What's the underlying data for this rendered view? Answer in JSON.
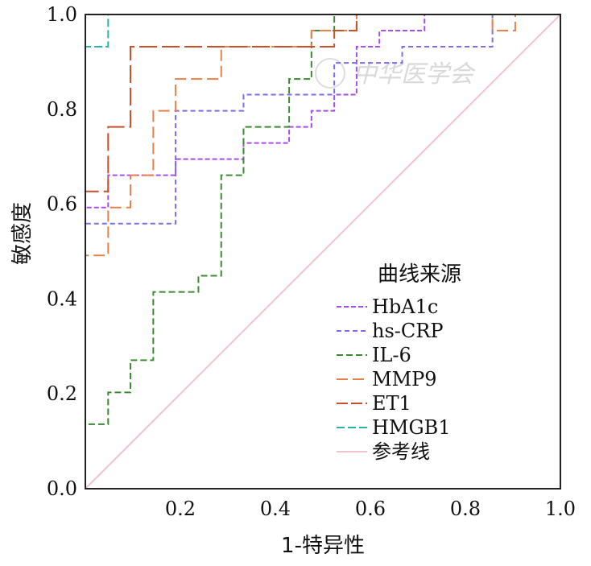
{
  "chart_data": {
    "type": "line",
    "title": "",
    "xlabel": "1-特异性",
    "ylabel": "敏感度",
    "xlim": [
      0,
      1
    ],
    "ylim": [
      0,
      1
    ],
    "xticks": [
      "0.2",
      "0.4",
      "0.6",
      "0.8",
      "1.0"
    ],
    "xtick_values": [
      0.2,
      0.4,
      0.6,
      0.8,
      1.0
    ],
    "yticks": [
      "0.0",
      "0.2",
      "0.4",
      "0.6",
      "0.8",
      "1.0"
    ],
    "ytick_values": [
      0.0,
      0.2,
      0.4,
      0.6,
      0.8,
      1.0
    ],
    "legend_title": "曲线来源",
    "watermark": "中华医学会",
    "series": [
      {
        "name": "HbA1c",
        "color": "#a64ee6",
        "dash": "6,3",
        "points": [
          [
            0,
            0
          ],
          [
            0,
            0.593
          ],
          [
            0.048,
            0.593
          ],
          [
            0.048,
            0.661
          ],
          [
            0.19,
            0.661
          ],
          [
            0.19,
            0.695
          ],
          [
            0.333,
            0.695
          ],
          [
            0.333,
            0.729
          ],
          [
            0.429,
            0.729
          ],
          [
            0.429,
            0.763
          ],
          [
            0.476,
            0.763
          ],
          [
            0.476,
            0.797
          ],
          [
            0.524,
            0.797
          ],
          [
            0.524,
            0.831
          ],
          [
            0.571,
            0.831
          ],
          [
            0.571,
            0.932
          ],
          [
            0.619,
            0.932
          ],
          [
            0.619,
            0.966
          ],
          [
            0.714,
            0.966
          ],
          [
            0.714,
            1.0
          ],
          [
            1.0,
            1.0
          ]
        ]
      },
      {
        "name": "hs-CRP",
        "color": "#7b6ee8",
        "dash": "6,4",
        "points": [
          [
            0,
            0
          ],
          [
            0,
            0.559
          ],
          [
            0.19,
            0.559
          ],
          [
            0.19,
            0.797
          ],
          [
            0.333,
            0.797
          ],
          [
            0.333,
            0.831
          ],
          [
            0.524,
            0.831
          ],
          [
            0.524,
            0.898
          ],
          [
            0.667,
            0.898
          ],
          [
            0.667,
            0.932
          ],
          [
            0.857,
            0.932
          ],
          [
            0.857,
            1.0
          ],
          [
            1.0,
            1.0
          ]
        ]
      },
      {
        "name": "IL-6",
        "color": "#3c8a32",
        "dash": "8,4",
        "points": [
          [
            0,
            0
          ],
          [
            0,
            0.136
          ],
          [
            0.048,
            0.136
          ],
          [
            0.048,
            0.203
          ],
          [
            0.095,
            0.203
          ],
          [
            0.095,
            0.271
          ],
          [
            0.143,
            0.271
          ],
          [
            0.143,
            0.415
          ],
          [
            0.238,
            0.415
          ],
          [
            0.238,
            0.449
          ],
          [
            0.286,
            0.449
          ],
          [
            0.286,
            0.661
          ],
          [
            0.333,
            0.661
          ],
          [
            0.333,
            0.763
          ],
          [
            0.429,
            0.763
          ],
          [
            0.429,
            0.864
          ],
          [
            0.476,
            0.864
          ],
          [
            0.476,
            0.966
          ],
          [
            0.524,
            0.966
          ],
          [
            0.524,
            1.0
          ],
          [
            1.0,
            1.0
          ]
        ]
      },
      {
        "name": "MMP9",
        "color": "#e8824a",
        "dash": "14,6",
        "points": [
          [
            0,
            0
          ],
          [
            0,
            0.492
          ],
          [
            0.048,
            0.492
          ],
          [
            0.048,
            0.593
          ],
          [
            0.095,
            0.593
          ],
          [
            0.095,
            0.661
          ],
          [
            0.143,
            0.661
          ],
          [
            0.143,
            0.797
          ],
          [
            0.19,
            0.797
          ],
          [
            0.19,
            0.864
          ],
          [
            0.286,
            0.864
          ],
          [
            0.286,
            0.932
          ],
          [
            0.476,
            0.932
          ],
          [
            0.476,
            0.966
          ],
          [
            0.571,
            0.966
          ],
          [
            0.571,
            1.0
          ],
          [
            0.857,
            1.0
          ],
          [
            0.857,
            0.966
          ],
          [
            0.905,
            0.966
          ],
          [
            0.905,
            1.0
          ],
          [
            1.0,
            1.0
          ]
        ]
      },
      {
        "name": "ET1",
        "color": "#c8502a",
        "dash": "22,6",
        "points": [
          [
            0,
            0
          ],
          [
            0,
            0.627
          ],
          [
            0.048,
            0.627
          ],
          [
            0.048,
            0.763
          ],
          [
            0.095,
            0.763
          ],
          [
            0.095,
            0.932
          ],
          [
            0.524,
            0.932
          ],
          [
            0.524,
            0.966
          ],
          [
            0.571,
            0.966
          ],
          [
            0.571,
            1.0
          ],
          [
            1.0,
            1.0
          ]
        ]
      },
      {
        "name": "HMGB1",
        "color": "#2bb3a8",
        "dash": "10,4",
        "points": [
          [
            0,
            0
          ],
          [
            0,
            0.932
          ],
          [
            0.048,
            0.932
          ],
          [
            0.048,
            1.0
          ],
          [
            1.0,
            1.0
          ]
        ]
      },
      {
        "name": "参考线",
        "color": "#f4c2cc",
        "dash": "",
        "points": [
          [
            0,
            0
          ],
          [
            1,
            1
          ]
        ]
      }
    ]
  }
}
